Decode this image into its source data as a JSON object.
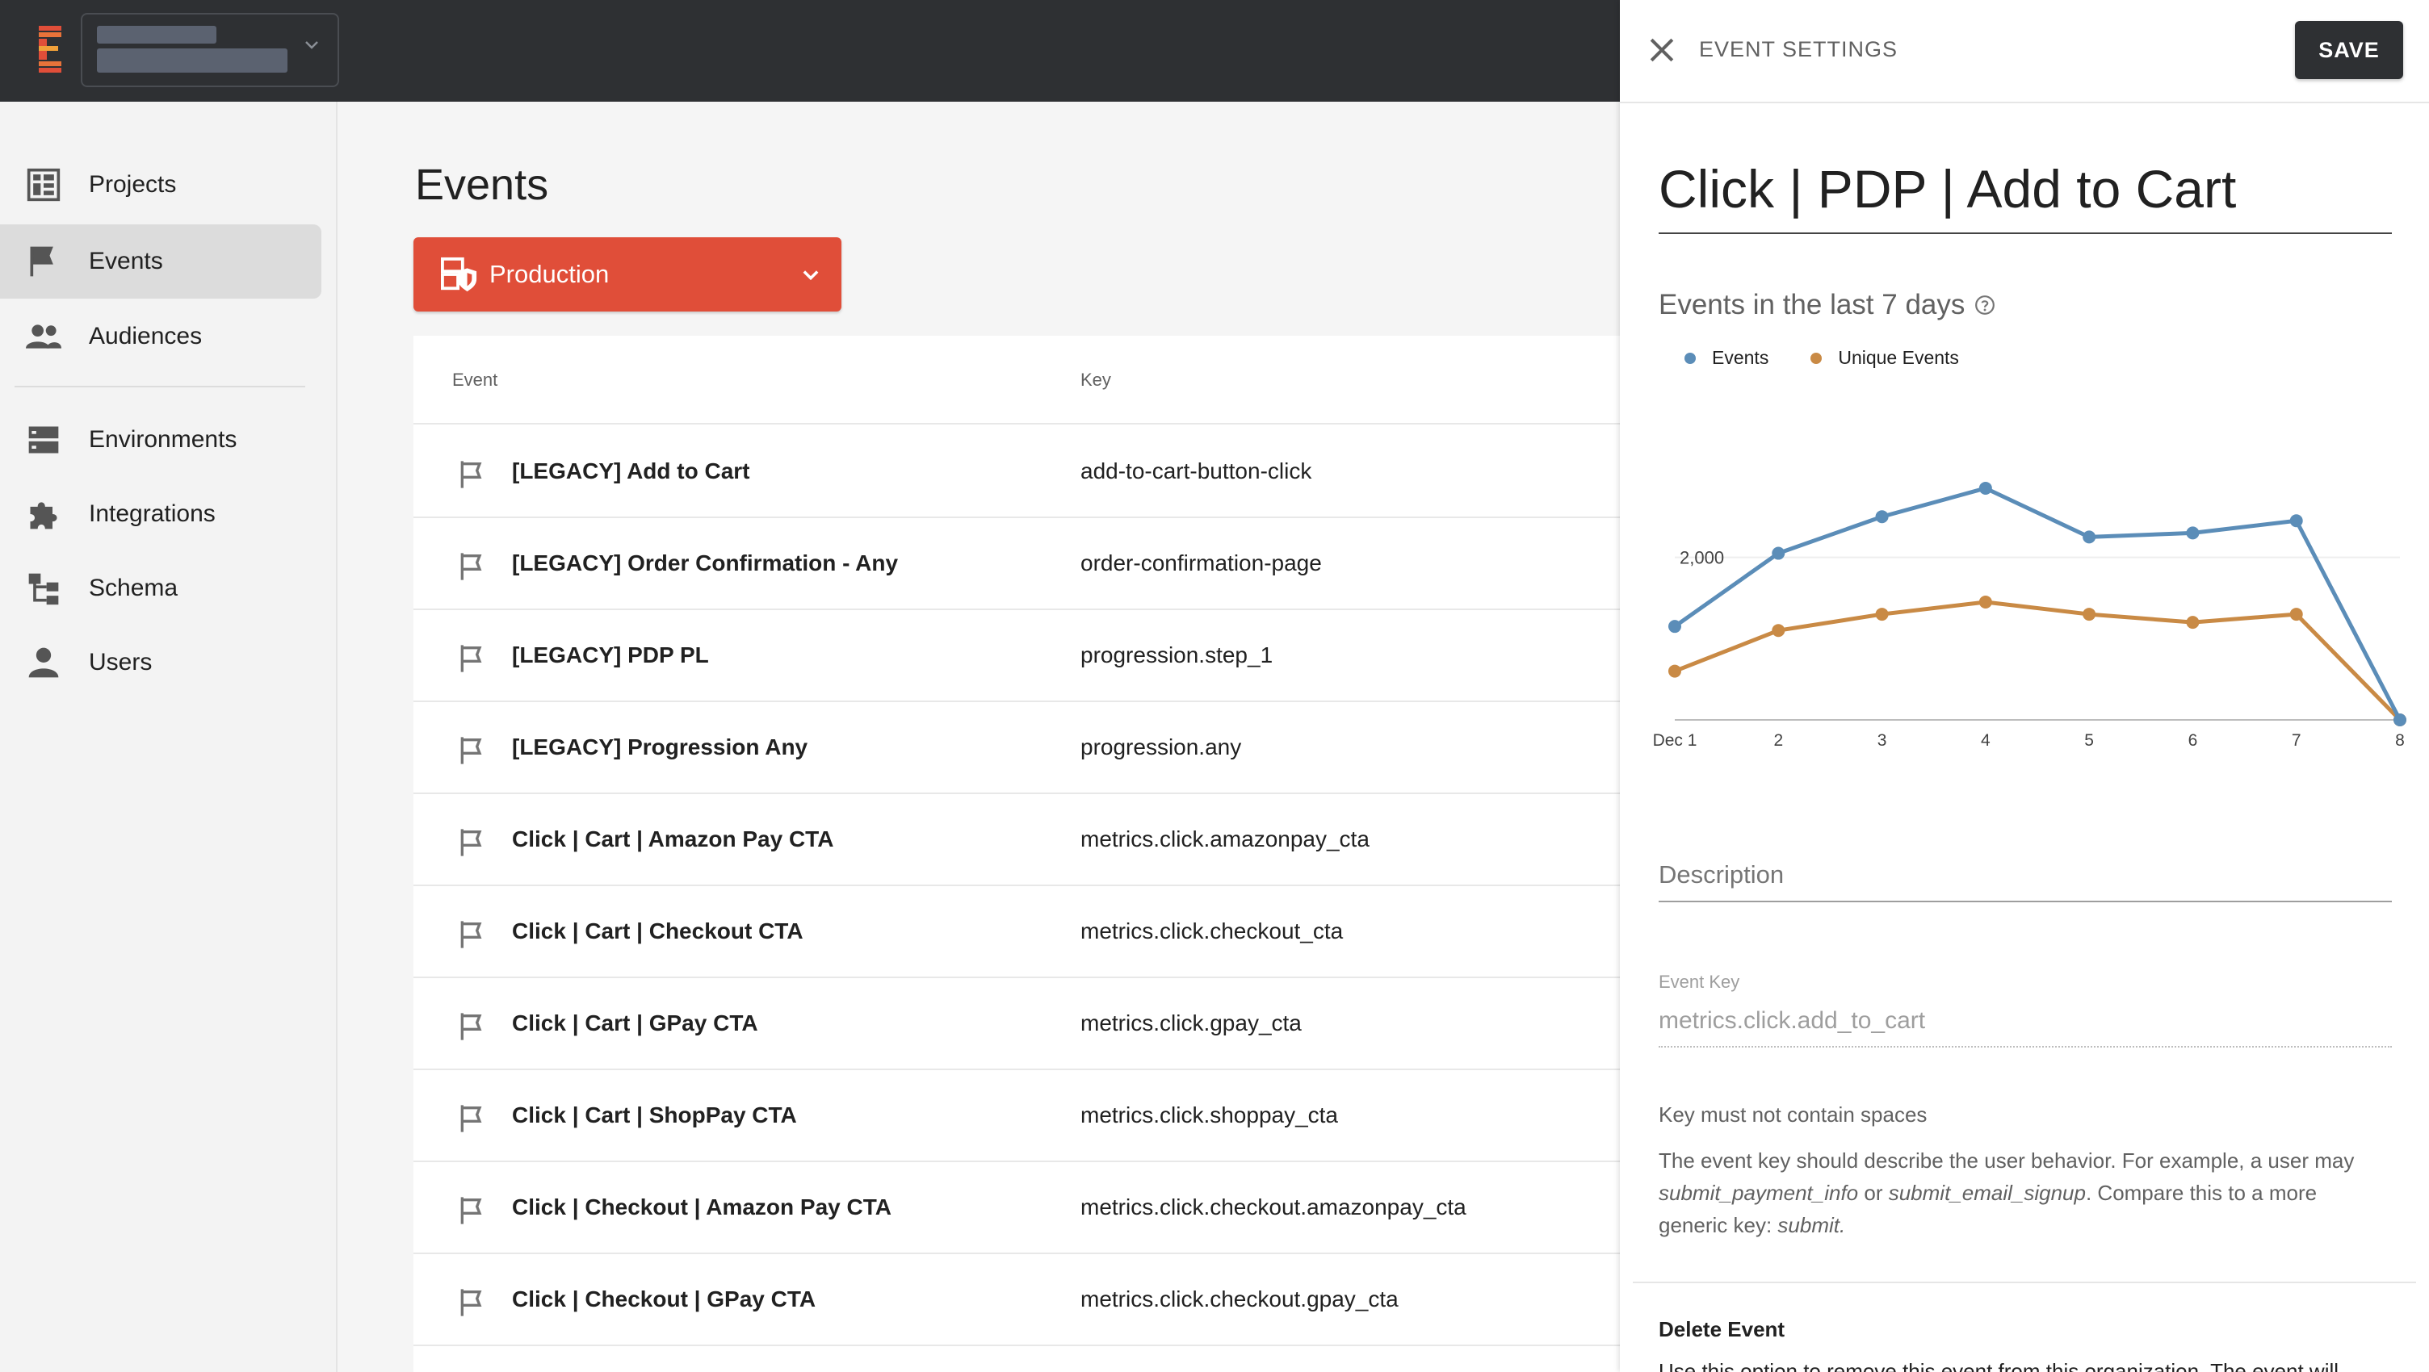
{
  "sidebar": {
    "items": [
      {
        "label": "Projects",
        "icon": "projects-icon"
      },
      {
        "label": "Events",
        "icon": "flag-icon",
        "active": true
      },
      {
        "label": "Audiences",
        "icon": "people-icon"
      },
      {
        "label": "Environments",
        "icon": "storage-icon"
      },
      {
        "label": "Integrations",
        "icon": "puzzle-icon"
      },
      {
        "label": "Schema",
        "icon": "schema-icon"
      },
      {
        "label": "Users",
        "icon": "person-icon"
      }
    ]
  },
  "main": {
    "title": "Events",
    "environment": {
      "label": "Production",
      "color": "#e04e39"
    },
    "table": {
      "columns": [
        "Event",
        "Key"
      ],
      "rows": [
        {
          "name": "[LEGACY] Add to Cart",
          "key": "add-to-cart-button-click"
        },
        {
          "name": "[LEGACY] Order Confirmation - Any",
          "key": "order-confirmation-page"
        },
        {
          "name": "[LEGACY] PDP PL",
          "key": "progression.step_1"
        },
        {
          "name": "[LEGACY] Progression Any",
          "key": "progression.any"
        },
        {
          "name": "Click | Cart | Amazon Pay CTA",
          "key": "metrics.click.amazonpay_cta"
        },
        {
          "name": "Click | Cart | Checkout CTA",
          "key": "metrics.click.checkout_cta"
        },
        {
          "name": "Click | Cart | GPay CTA",
          "key": "metrics.click.gpay_cta"
        },
        {
          "name": "Click | Cart | ShopPay CTA",
          "key": "metrics.click.shoppay_cta"
        },
        {
          "name": "Click | Checkout | Amazon Pay CTA",
          "key": "metrics.click.checkout.amazonpay_cta"
        },
        {
          "name": "Click | Checkout | GPay CTA",
          "key": "metrics.click.checkout.gpay_cta"
        }
      ]
    }
  },
  "panel": {
    "header_title": "EVENT SETTINGS",
    "save_label": "SAVE",
    "event_name": "Click | PDP | Add to Cart",
    "chart_title": "Events in the last 7 days",
    "description_label": "Description",
    "event_key_label": "Event Key",
    "event_key_value": "metrics.click.add_to_cart",
    "key_hint": "Key must not contain spaces",
    "help": {
      "part1": "The event key should describe the user behavior. For example, a user may ",
      "example1": "submit_payment_info",
      "part2": " or ",
      "example2": "submit_email_signup",
      "part3": ". Compare this to a more generic key: ",
      "example3": "submit."
    },
    "delete_title": "Delete Event",
    "delete_text": "Use this option to remove this event from this organization. The event will"
  },
  "chart_data": {
    "type": "line",
    "title": "Events in the last 7 days",
    "categories": [
      "Dec 1",
      "2",
      "3",
      "4",
      "5",
      "6",
      "7",
      "8"
    ],
    "series": [
      {
        "name": "Events",
        "color": "#5b8db8",
        "values": [
          1150,
          2050,
          2500,
          2850,
          2250,
          2300,
          2450,
          0
        ]
      },
      {
        "name": "Unique Events",
        "color": "#c98a45",
        "values": [
          600,
          1100,
          1300,
          1450,
          1300,
          1200,
          1300,
          0
        ]
      }
    ],
    "ytick_labels": [
      "2,000"
    ],
    "ylim": [
      0,
      3000
    ],
    "grid": true,
    "legend": "top-left"
  },
  "colors": {
    "topbar": "#2e3033",
    "accent": "#e04e39",
    "save_button": "#2e3033"
  }
}
